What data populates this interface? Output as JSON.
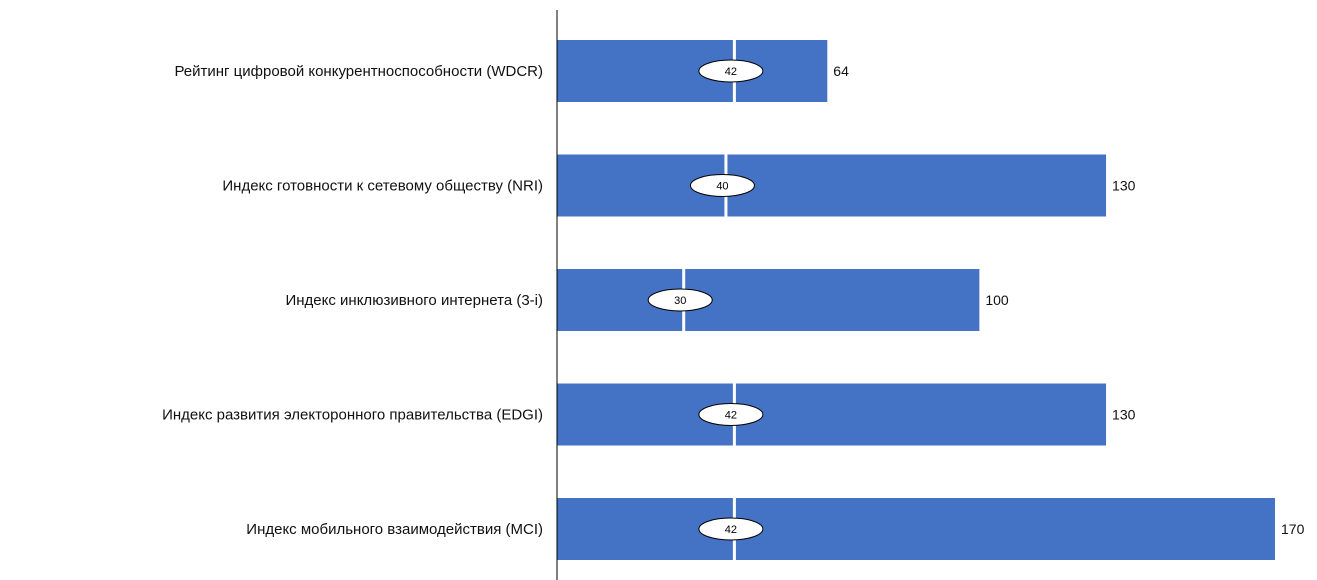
{
  "chart_data": {
    "type": "bar",
    "orientation": "horizontal",
    "categories": [
      "Рейтинг цифровой конкурентноспособности (WDCR)",
      "Индекс готовности к сетевому обществу (NRI)",
      "Индекс инклюзивного интернета (3-i)",
      "Индекс развития электоронного правительства (EDGI)",
      "Индекс мобильного взаимодействия (MCI)"
    ],
    "values": [
      64,
      130,
      100,
      130,
      170
    ],
    "value_labels": [
      "64",
      "130",
      "100",
      "130",
      "170"
    ],
    "markers": [
      42,
      40,
      30,
      42,
      42
    ],
    "marker_labels": [
      "42",
      "40",
      "30",
      "42",
      "42"
    ],
    "xlim": [
      0,
      170
    ],
    "grid": false,
    "legend": "none",
    "colors": {
      "bar": "#4472c4",
      "marker_line": "#ffffff",
      "marker_fill": "#ffffff",
      "marker_stroke": "#000000",
      "axis": "#000000"
    }
  }
}
